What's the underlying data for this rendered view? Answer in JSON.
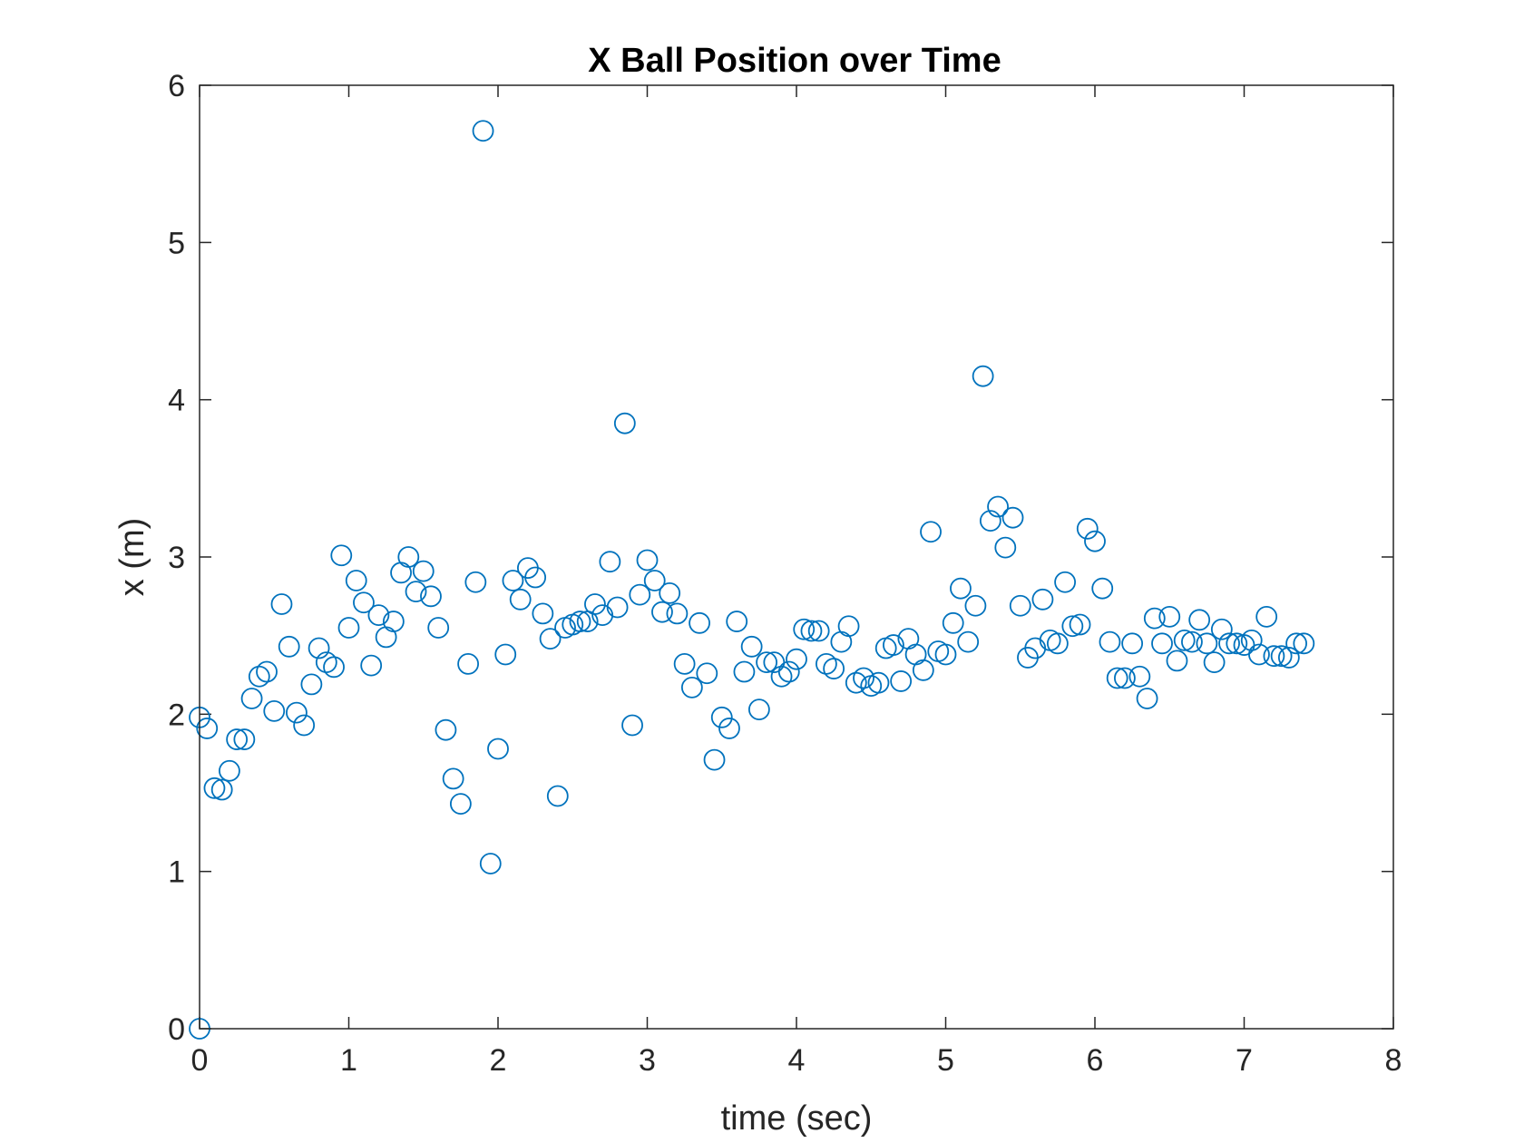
{
  "chart_data": {
    "type": "scatter",
    "title": "X Ball Position over Time",
    "xlabel": "time (sec)",
    "ylabel": "x (m)",
    "xlim": [
      0,
      8
    ],
    "ylim": [
      0,
      6
    ],
    "xticks": [
      "0",
      "1",
      "2",
      "3",
      "4",
      "5",
      "6",
      "7",
      "8"
    ],
    "yticks": [
      "0",
      "1",
      "2",
      "3",
      "4",
      "5",
      "6"
    ],
    "grid": false,
    "marker": "open-circle",
    "marker_color": "#0072BD",
    "axis_color": "#262626",
    "series": [
      {
        "points": [
          [
            0.0,
            0.0
          ],
          [
            0.0,
            1.98
          ],
          [
            0.05,
            1.91
          ],
          [
            0.1,
            1.53
          ],
          [
            0.15,
            1.52
          ],
          [
            0.2,
            1.64
          ],
          [
            0.25,
            1.84
          ],
          [
            0.3,
            1.84
          ],
          [
            0.35,
            2.1
          ],
          [
            0.4,
            2.24
          ],
          [
            0.45,
            2.27
          ],
          [
            0.5,
            2.02
          ],
          [
            0.55,
            2.7
          ],
          [
            0.6,
            2.43
          ],
          [
            0.65,
            2.01
          ],
          [
            0.7,
            1.93
          ],
          [
            0.75,
            2.19
          ],
          [
            0.8,
            2.42
          ],
          [
            0.85,
            2.33
          ],
          [
            0.9,
            2.3
          ],
          [
            0.95,
            3.01
          ],
          [
            1.0,
            2.55
          ],
          [
            1.05,
            2.85
          ],
          [
            1.1,
            2.71
          ],
          [
            1.15,
            2.31
          ],
          [
            1.2,
            2.63
          ],
          [
            1.25,
            2.49
          ],
          [
            1.3,
            2.59
          ],
          [
            1.35,
            2.9
          ],
          [
            1.4,
            3.0
          ],
          [
            1.45,
            2.78
          ],
          [
            1.5,
            2.91
          ],
          [
            1.55,
            2.75
          ],
          [
            1.6,
            2.55
          ],
          [
            1.65,
            1.9
          ],
          [
            1.7,
            1.59
          ],
          [
            1.75,
            1.43
          ],
          [
            1.8,
            2.32
          ],
          [
            1.85,
            2.84
          ],
          [
            1.9,
            5.71
          ],
          [
            1.95,
            1.05
          ],
          [
            2.0,
            1.78
          ],
          [
            2.05,
            2.38
          ],
          [
            2.1,
            2.85
          ],
          [
            2.15,
            2.73
          ],
          [
            2.2,
            2.93
          ],
          [
            2.25,
            2.87
          ],
          [
            2.3,
            2.64
          ],
          [
            2.35,
            2.48
          ],
          [
            2.4,
            1.48
          ],
          [
            2.45,
            2.55
          ],
          [
            2.5,
            2.57
          ],
          [
            2.55,
            2.59
          ],
          [
            2.6,
            2.59
          ],
          [
            2.65,
            2.7
          ],
          [
            2.7,
            2.63
          ],
          [
            2.75,
            2.97
          ],
          [
            2.8,
            2.68
          ],
          [
            2.85,
            3.85
          ],
          [
            2.9,
            1.93
          ],
          [
            2.95,
            2.76
          ],
          [
            3.0,
            2.98
          ],
          [
            3.05,
            2.85
          ],
          [
            3.1,
            2.65
          ],
          [
            3.15,
            2.77
          ],
          [
            3.2,
            2.64
          ],
          [
            3.25,
            2.32
          ],
          [
            3.3,
            2.17
          ],
          [
            3.35,
            2.58
          ],
          [
            3.4,
            2.26
          ],
          [
            3.45,
            1.71
          ],
          [
            3.5,
            1.98
          ],
          [
            3.55,
            1.91
          ],
          [
            3.6,
            2.59
          ],
          [
            3.65,
            2.27
          ],
          [
            3.7,
            2.43
          ],
          [
            3.75,
            2.03
          ],
          [
            3.8,
            2.33
          ],
          [
            3.85,
            2.33
          ],
          [
            3.9,
            2.24
          ],
          [
            3.95,
            2.27
          ],
          [
            4.0,
            2.35
          ],
          [
            4.05,
            2.54
          ],
          [
            4.1,
            2.53
          ],
          [
            4.15,
            2.53
          ],
          [
            4.2,
            2.32
          ],
          [
            4.25,
            2.29
          ],
          [
            4.3,
            2.46
          ],
          [
            4.35,
            2.56
          ],
          [
            4.4,
            2.2
          ],
          [
            4.45,
            2.23
          ],
          [
            4.5,
            2.18
          ],
          [
            4.55,
            2.2
          ],
          [
            4.6,
            2.42
          ],
          [
            4.65,
            2.44
          ],
          [
            4.7,
            2.21
          ],
          [
            4.75,
            2.48
          ],
          [
            4.8,
            2.38
          ],
          [
            4.85,
            2.28
          ],
          [
            4.9,
            3.16
          ],
          [
            4.95,
            2.4
          ],
          [
            5.0,
            2.38
          ],
          [
            5.05,
            2.58
          ],
          [
            5.1,
            2.8
          ],
          [
            5.15,
            2.46
          ],
          [
            5.2,
            2.69
          ],
          [
            5.25,
            4.15
          ],
          [
            5.3,
            3.23
          ],
          [
            5.35,
            3.32
          ],
          [
            5.4,
            3.06
          ],
          [
            5.45,
            3.25
          ],
          [
            5.5,
            2.69
          ],
          [
            5.55,
            2.36
          ],
          [
            5.6,
            2.42
          ],
          [
            5.65,
            2.73
          ],
          [
            5.7,
            2.47
          ],
          [
            5.75,
            2.45
          ],
          [
            5.8,
            2.84
          ],
          [
            5.85,
            2.56
          ],
          [
            5.9,
            2.57
          ],
          [
            5.95,
            3.18
          ],
          [
            6.0,
            3.1
          ],
          [
            6.05,
            2.8
          ],
          [
            6.1,
            2.46
          ],
          [
            6.15,
            2.23
          ],
          [
            6.2,
            2.23
          ],
          [
            6.25,
            2.45
          ],
          [
            6.3,
            2.24
          ],
          [
            6.35,
            2.1
          ],
          [
            6.4,
            2.61
          ],
          [
            6.45,
            2.45
          ],
          [
            6.5,
            2.62
          ],
          [
            6.55,
            2.34
          ],
          [
            6.6,
            2.47
          ],
          [
            6.65,
            2.46
          ],
          [
            6.7,
            2.6
          ],
          [
            6.75,
            2.45
          ],
          [
            6.8,
            2.33
          ],
          [
            6.85,
            2.54
          ],
          [
            6.9,
            2.45
          ],
          [
            6.95,
            2.45
          ],
          [
            7.0,
            2.44
          ],
          [
            7.05,
            2.47
          ],
          [
            7.1,
            2.38
          ],
          [
            7.15,
            2.62
          ],
          [
            7.2,
            2.37
          ],
          [
            7.25,
            2.37
          ],
          [
            7.3,
            2.36
          ],
          [
            7.35,
            2.45
          ],
          [
            7.4,
            2.45
          ]
        ]
      }
    ]
  }
}
